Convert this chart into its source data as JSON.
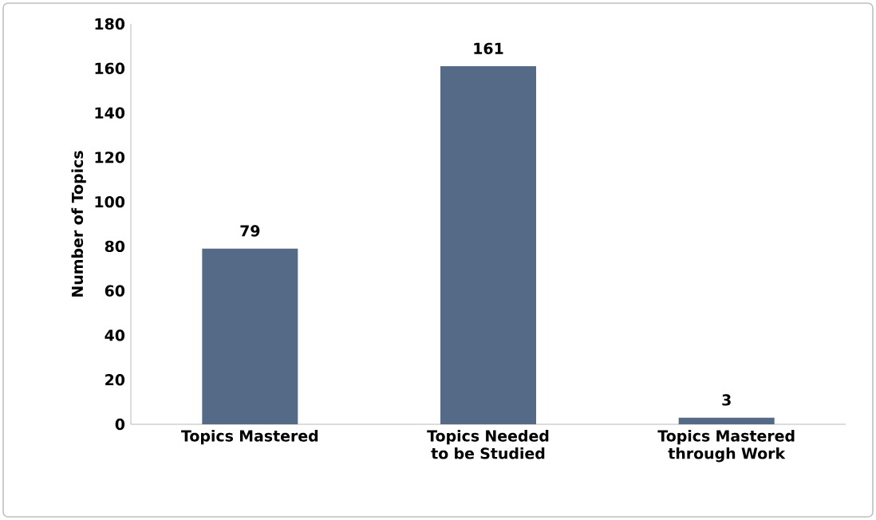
{
  "chart_data": {
    "type": "bar",
    "ylabel": "Number of Topics",
    "categories": [
      "Topics Mastered",
      "Topics Needed to be Studied",
      "Topics Mastered through Work"
    ],
    "values": [
      79,
      161,
      3
    ],
    "color": "#556a87",
    "ylim": [
      0,
      180
    ],
    "yticks": [
      0,
      20,
      40,
      60,
      80,
      100,
      120,
      140,
      160,
      180
    ],
    "grid": false,
    "data_labels": true
  }
}
